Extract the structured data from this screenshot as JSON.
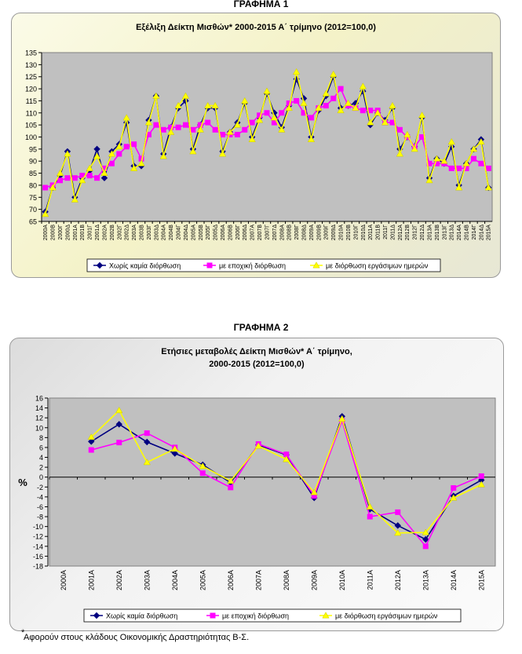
{
  "headings": {
    "chart1": "ΓΡΑΦΗΜΑ 1",
    "chart2": "ΓΡΑΦΗΜΑ 2"
  },
  "footnote": {
    "marker": "*",
    "text": "Αφορούν στους κλάδους Οικονομικής Δραστηριότητας Β-Σ."
  },
  "colors": {
    "series1": "#000080",
    "series2": "#ff00ff",
    "series3": "#ffff00",
    "plot_background": "#c0c0c0"
  },
  "chart_data": [
    {
      "type": "line",
      "title": "Εξέλιξη Δείκτη Μισθών* 2000-2015 Α΄ τρίμηνο (2012=100,0)",
      "xlabel": "",
      "ylabel": "",
      "ylim": [
        65,
        135
      ],
      "yticks": [
        65,
        70,
        75,
        80,
        85,
        90,
        95,
        100,
        105,
        110,
        115,
        120,
        125,
        130,
        135
      ],
      "grid": false,
      "legend_position": "bottom",
      "categories": [
        "2000Α",
        "2000Β",
        "2000Γ",
        "2000Δ",
        "2001Α",
        "2001Β",
        "2001Γ",
        "2001Δ",
        "2002Α",
        "2002Β",
        "2002Γ",
        "2002Δ",
        "2003Α",
        "2003Β",
        "2003Γ",
        "2003Δ",
        "2004Α",
        "2004Β",
        "2004Γ",
        "2004Δ",
        "2005Α",
        "2005Β",
        "2005Γ",
        "2005Δ",
        "2006Α",
        "2006Β",
        "2006Γ",
        "2006Δ",
        "2007Α",
        "2007Β",
        "2007Γ",
        "2007Δ",
        "2008Α",
        "2008Β",
        "2008Γ",
        "2008Δ",
        "2009Α",
        "2009Β",
        "2009Γ",
        "2009Δ",
        "2010Α",
        "2010Β",
        "2010Γ",
        "2010Δ",
        "2011Α",
        "2011Β",
        "2011Γ",
        "2011Δ",
        "2012Α",
        "2012Β",
        "2012Γ",
        "2012Δ",
        "2013Α",
        "2013Β",
        "2013Γ",
        "2013Δ",
        "2014Α",
        "2014Β",
        "2014Γ",
        "2014Δ",
        "2015Α"
      ],
      "series": [
        {
          "name": "Χωρίς καμία διόρθωση",
          "values": [
            69,
            79,
            84,
            94,
            75,
            83,
            86,
            95,
            83,
            94,
            97,
            106,
            88,
            88,
            107,
            117,
            93,
            104,
            112,
            115,
            95,
            105,
            112,
            112,
            94,
            102,
            106,
            114,
            100,
            108,
            118,
            110,
            104,
            113,
            124,
            116,
            100,
            111,
            117,
            125,
            112,
            113,
            114,
            119,
            105,
            110,
            107,
            112,
            95,
            100,
            96,
            108,
            83,
            91,
            89,
            96,
            80,
            89,
            95,
            99,
            79
          ]
        },
        {
          "name": "με εποχική διόρθωση",
          "values": [
            79,
            80,
            82,
            83,
            83,
            84,
            84,
            83,
            87,
            89,
            93,
            96,
            97,
            91,
            101,
            105,
            103,
            104,
            104,
            105,
            103,
            105,
            106,
            103,
            101,
            101,
            101,
            103,
            106,
            109,
            110,
            106,
            110,
            114,
            115,
            110,
            108,
            112,
            113,
            116,
            120,
            113,
            112,
            111,
            111,
            111,
            106,
            106,
            103,
            100,
            96,
            100,
            89,
            89,
            89,
            87,
            87,
            87,
            91,
            89,
            87
          ]
        },
        {
          "name": "με διόρθωση εργάσιμων ημερών",
          "values": [
            68,
            79,
            85,
            93,
            74,
            82,
            87,
            92,
            85,
            93,
            96,
            108,
            87,
            89,
            106,
            117,
            92,
            102,
            113,
            117,
            94,
            103,
            113,
            113,
            93,
            102,
            105,
            115,
            99,
            107,
            119,
            108,
            103,
            112,
            127,
            114,
            99,
            112,
            118,
            126,
            111,
            114,
            112,
            121,
            106,
            110,
            106,
            113,
            93,
            101,
            95,
            109,
            82,
            91,
            90,
            98,
            79,
            89,
            95,
            98,
            79
          ]
        }
      ]
    },
    {
      "type": "line",
      "title": "Ετήσιες μεταβολές Δείκτη Μισθών* Α΄ τρίμηνο, 2000-2015 (2012=100,0)",
      "title_lines": [
        "Ετήσιες μεταβολές Δείκτη Μισθών* Α΄ τρίμηνο,",
        "2000-2015 (2012=100,0)"
      ],
      "xlabel": "",
      "ylabel": "%",
      "ylim": [
        -18,
        16
      ],
      "yticks": [
        -18,
        -16,
        -14,
        -12,
        -10,
        -8,
        -6,
        -4,
        -2,
        0,
        2,
        4,
        6,
        8,
        10,
        12,
        14,
        16
      ],
      "grid": false,
      "legend_position": "bottom",
      "categories": [
        "2000Α",
        "2001Α",
        "2002Α",
        "2003Α",
        "2004Α",
        "2005Α",
        "2006Α",
        "2007Α",
        "2008Α",
        "2009Α",
        "2010Α",
        "2011Α",
        "2012Α",
        "2013Α",
        "2014Α",
        "2015Α"
      ],
      "series": [
        {
          "name": "Χωρίς καμία διόρθωση",
          "values": [
            null,
            7.2,
            10.7,
            7.1,
            4.8,
            2.5,
            -1.1,
            6.5,
            4.5,
            -4.2,
            12.3,
            -6.5,
            -9.8,
            -12.6,
            -3.8,
            -0.6
          ]
        },
        {
          "name": "με εποχική διόρθωση",
          "values": [
            null,
            5.5,
            7.0,
            8.9,
            6.0,
            0.8,
            -2.1,
            6.7,
            4.6,
            -3.8,
            11.4,
            -8.0,
            -7.1,
            -14.0,
            -2.2,
            0.2
          ]
        },
        {
          "name": "με διόρθωση εργάσιμων ημερών",
          "values": [
            null,
            8.1,
            13.5,
            3.0,
            5.7,
            2.2,
            -0.8,
            6.3,
            3.6,
            -3.1,
            11.8,
            -6.0,
            -11.3,
            -11.2,
            -4.2,
            -1.5
          ]
        }
      ]
    }
  ]
}
